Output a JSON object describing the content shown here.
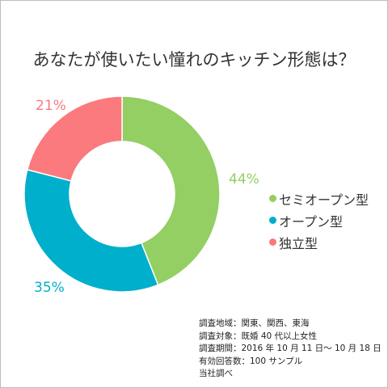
{
  "chart_data": {
    "type": "pie",
    "title": "あなたが使いたい憧れのキッチン形態は？",
    "categories": [
      "セミオープン型",
      "オープン型",
      "独立型"
    ],
    "values": [
      44,
      35,
      21
    ],
    "value_labels": [
      "44%",
      "35%",
      "21%"
    ],
    "colors": [
      "#93cf63",
      "#00afcb",
      "#fb7a7d"
    ],
    "legend_position": "right",
    "donut": true
  },
  "notes": [
    "調査地域：関東、関西、東海",
    "調査対象：既婚 40 代以上女性",
    "調査期間：2016 年 10 月 11 日～ 10 月 18 日",
    "有効回答数：100 サンプル",
    "当社調べ"
  ]
}
